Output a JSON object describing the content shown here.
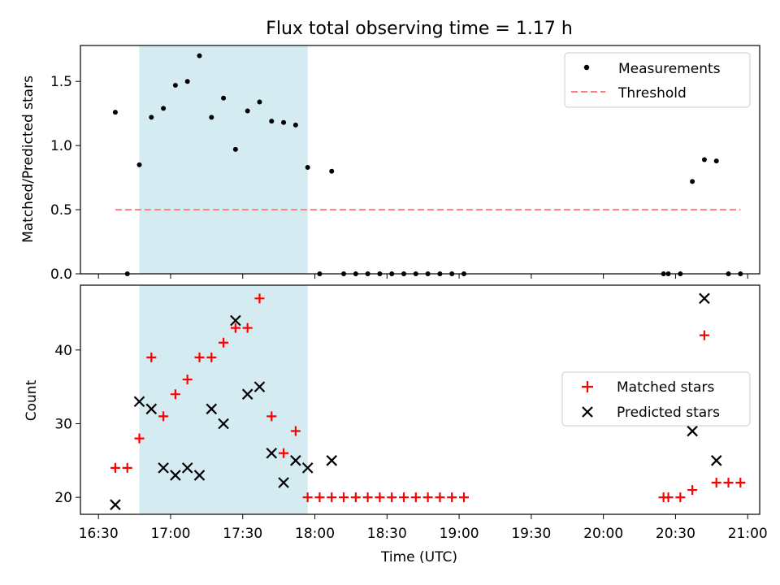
{
  "chart_data": [
    {
      "type": "scatter",
      "title": "Flux total observing time = 1.17 h",
      "xlabel": "",
      "ylabel": "Matched/Predicted stars",
      "ylim": [
        0,
        1.78
      ],
      "y_ticks": [
        "0.0",
        "0.5",
        "1.0",
        "1.5"
      ],
      "shaded_interval": [
        "16:47",
        "17:57"
      ],
      "legend": {
        "placement": "top-right",
        "entries": [
          "Measurements",
          "Threshold"
        ]
      },
      "threshold": {
        "name": "Threshold",
        "value": 0.5,
        "x_range": [
          "16:37",
          "20:57"
        ],
        "color": "#ff7f7f",
        "style": "dashed"
      },
      "series": [
        {
          "name": "Measurements",
          "marker": "dot",
          "color": "#000000",
          "points": [
            [
              "16:37",
              1.26
            ],
            [
              "16:42",
              0.0
            ],
            [
              "16:47",
              0.85
            ],
            [
              "16:52",
              1.22
            ],
            [
              "16:57",
              1.29
            ],
            [
              "17:02",
              1.47
            ],
            [
              "17:07",
              1.5
            ],
            [
              "17:12",
              1.7
            ],
            [
              "17:17",
              1.22
            ],
            [
              "17:22",
              1.37
            ],
            [
              "17:27",
              0.97
            ],
            [
              "17:32",
              1.27
            ],
            [
              "17:37",
              1.34
            ],
            [
              "17:42",
              1.19
            ],
            [
              "17:47",
              1.18
            ],
            [
              "17:52",
              1.16
            ],
            [
              "17:57",
              0.83
            ],
            [
              "18:02",
              0.0
            ],
            [
              "18:07",
              0.8
            ],
            [
              "18:12",
              0.0
            ],
            [
              "18:17",
              0.0
            ],
            [
              "18:22",
              0.0
            ],
            [
              "18:27",
              0.0
            ],
            [
              "18:32",
              0.0
            ],
            [
              "18:37",
              0.0
            ],
            [
              "18:42",
              0.0
            ],
            [
              "18:47",
              0.0
            ],
            [
              "18:52",
              0.0
            ],
            [
              "18:57",
              0.0
            ],
            [
              "19:02",
              0.0
            ],
            [
              "20:25",
              0.0
            ],
            [
              "20:27",
              0.0
            ],
            [
              "20:32",
              0.0
            ],
            [
              "20:37",
              0.72
            ],
            [
              "20:42",
              0.89
            ],
            [
              "20:47",
              0.88
            ],
            [
              "20:52",
              0.0
            ],
            [
              "20:57",
              0.0
            ]
          ]
        }
      ]
    },
    {
      "type": "scatter",
      "title": "",
      "xlabel": "Time (UTC)",
      "ylabel": "Count",
      "ylim": [
        17.7,
        48.8
      ],
      "y_ticks": [
        "20",
        "30",
        "40"
      ],
      "x_ticks": [
        "16:30",
        "17:00",
        "17:30",
        "18:00",
        "18:30",
        "19:00",
        "19:30",
        "20:00",
        "20:30",
        "21:00"
      ],
      "shaded_interval": [
        "16:47",
        "17:57"
      ],
      "legend": {
        "placement": "center-right",
        "entries": [
          "Matched stars",
          "Predicted stars"
        ]
      },
      "series": [
        {
          "name": "Matched stars",
          "marker": "plus",
          "color": "#ff0000",
          "points": [
            [
              "16:37",
              24
            ],
            [
              "16:42",
              24
            ],
            [
              "16:47",
              28
            ],
            [
              "16:52",
              39
            ],
            [
              "16:57",
              31
            ],
            [
              "17:02",
              34
            ],
            [
              "17:07",
              36
            ],
            [
              "17:12",
              39
            ],
            [
              "17:17",
              39
            ],
            [
              "17:22",
              41
            ],
            [
              "17:27",
              43
            ],
            [
              "17:32",
              43
            ],
            [
              "17:37",
              47
            ],
            [
              "17:42",
              31
            ],
            [
              "17:47",
              26
            ],
            [
              "17:52",
              29
            ],
            [
              "17:57",
              20
            ],
            [
              "18:02",
              20
            ],
            [
              "18:07",
              20
            ],
            [
              "18:12",
              20
            ],
            [
              "18:17",
              20
            ],
            [
              "18:22",
              20
            ],
            [
              "18:27",
              20
            ],
            [
              "18:32",
              20
            ],
            [
              "18:37",
              20
            ],
            [
              "18:42",
              20
            ],
            [
              "18:47",
              20
            ],
            [
              "18:52",
              20
            ],
            [
              "18:57",
              20
            ],
            [
              "19:02",
              20
            ],
            [
              "20:25",
              20
            ],
            [
              "20:27",
              20
            ],
            [
              "20:32",
              20
            ],
            [
              "20:37",
              21
            ],
            [
              "20:42",
              42
            ],
            [
              "20:47",
              22
            ],
            [
              "20:52",
              22
            ],
            [
              "20:57",
              22
            ]
          ]
        },
        {
          "name": "Predicted stars",
          "marker": "x",
          "color": "#000000",
          "points": [
            [
              "16:37",
              19
            ],
            [
              "16:47",
              33
            ],
            [
              "16:52",
              32
            ],
            [
              "16:57",
              24
            ],
            [
              "17:02",
              23
            ],
            [
              "17:07",
              24
            ],
            [
              "17:12",
              23
            ],
            [
              "17:17",
              32
            ],
            [
              "17:22",
              30
            ],
            [
              "17:27",
              44
            ],
            [
              "17:32",
              34
            ],
            [
              "17:37",
              35
            ],
            [
              "17:42",
              26
            ],
            [
              "17:47",
              22
            ],
            [
              "17:52",
              25
            ],
            [
              "17:57",
              24
            ],
            [
              "18:07",
              25
            ],
            [
              "20:37",
              29
            ],
            [
              "20:42",
              47
            ],
            [
              "20:47",
              25
            ]
          ]
        }
      ]
    }
  ]
}
